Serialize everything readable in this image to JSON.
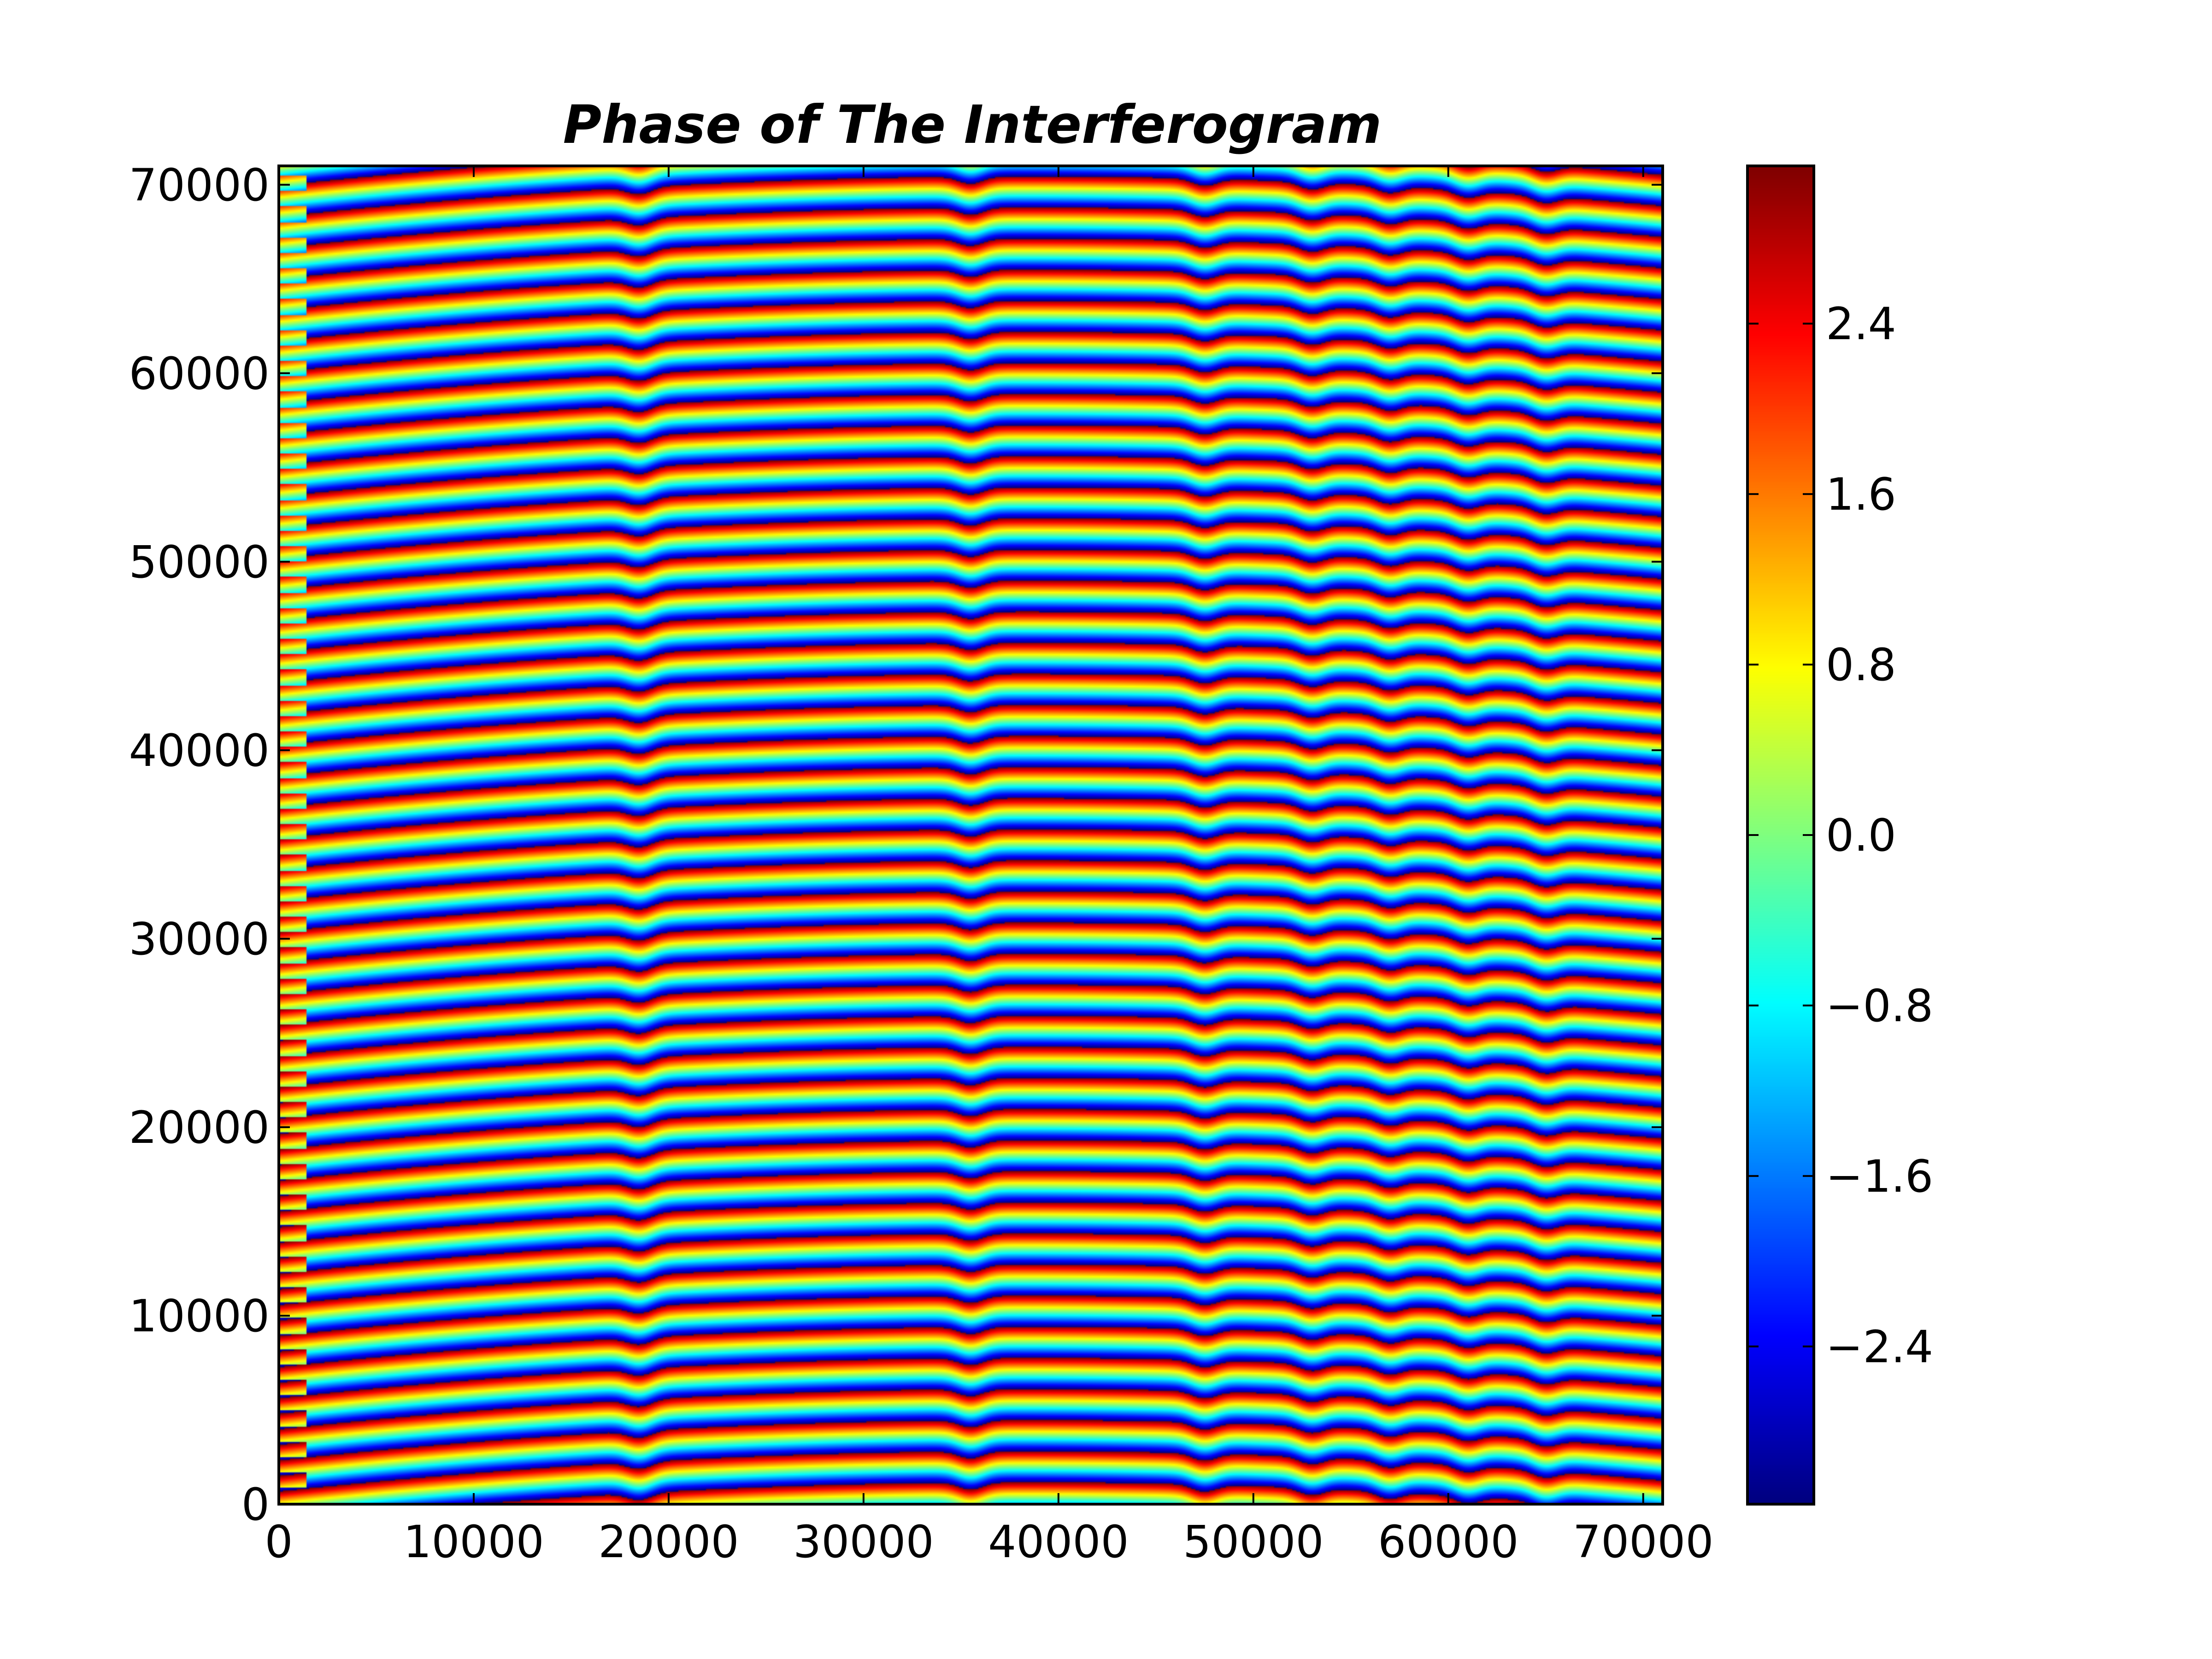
{
  "chart_data": {
    "type": "heatmap",
    "title": "Phase of The Interferogram",
    "xlabel": "",
    "ylabel": "",
    "xlim": [
      0,
      71000
    ],
    "ylim": [
      0,
      71000
    ],
    "x_ticks": [
      0,
      10000,
      20000,
      30000,
      40000,
      50000,
      60000,
      70000
    ],
    "x_tick_labels": [
      "0",
      "10000",
      "20000",
      "30000",
      "40000",
      "50000",
      "60000",
      "70000"
    ],
    "y_ticks": [
      0,
      10000,
      20000,
      30000,
      40000,
      50000,
      60000,
      70000
    ],
    "y_tick_labels": [
      "0",
      "10000",
      "20000",
      "30000",
      "40000",
      "50000",
      "60000",
      "70000"
    ],
    "colormap": "jet",
    "colorbar": {
      "range": [
        -3.14,
        3.14
      ],
      "ticks": [
        -2.4,
        -1.6,
        -0.8,
        0.0,
        0.8,
        1.6,
        2.4
      ],
      "tick_labels": [
        "−2.4",
        "−1.6",
        "−0.8",
        "0.0",
        "0.8",
        "1.6",
        "2.4"
      ]
    },
    "pattern": {
      "description_of_values": "wrapped phase in radians, periodic fringes in y",
      "fringe_count": 43,
      "phase_bulge_x_centers": [
        18500,
        35500,
        47500,
        53000,
        57000,
        61000,
        65000
      ],
      "left_strip_x_end": 1400
    },
    "grid": false
  },
  "colors": {
    "frame": "#000000",
    "background": "#ffffff"
  }
}
